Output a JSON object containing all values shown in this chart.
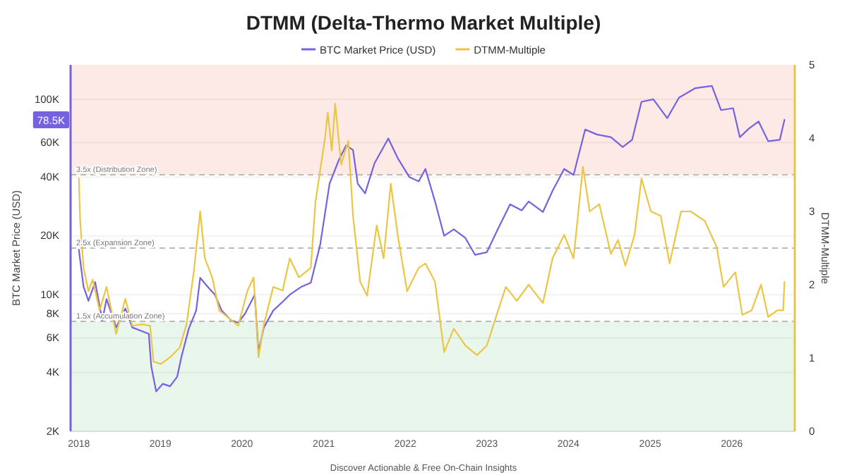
{
  "chart_data": {
    "type": "line",
    "title": "DTMM (Delta-Thermo Market Multiple)",
    "ylabel": "BTC Market Price (USD)",
    "y2label": "DTMM-Multiple",
    "annotations": [
      "Discover Actionable & Free On-Chain Insights",
      {
        "text": "78.5K",
        "y": 78500
      }
    ],
    "log": "y",
    "grid": "y",
    "legend": "top",
    "line_style": "solid",
    "marker": "none",
    "xlim": [
      "2017-11-25",
      "2026-10-10"
    ],
    "xticks": [
      "2018",
      "2019",
      "2020",
      "2021",
      "2022",
      "2023",
      "2024",
      "2025",
      "2026"
    ],
    "ylim": [
      2000,
      150000
    ],
    "yticks": [
      {
        "value": 2000,
        "label": "2K"
      },
      {
        "value": 4000,
        "label": "4K"
      },
      {
        "value": 6000,
        "label": "6K"
      },
      {
        "value": 8000,
        "label": "8K"
      },
      {
        "value": 10000,
        "label": "10K"
      },
      {
        "value": 20000,
        "label": "20K"
      },
      {
        "value": 40000,
        "label": "40K"
      },
      {
        "value": 60000,
        "label": "60K"
      },
      {
        "value": 100000,
        "label": "100K"
      }
    ],
    "y2lim": [
      0,
      5
    ],
    "y2ticks": [
      0,
      1,
      2,
      3,
      4,
      5
    ],
    "bands": [
      {
        "axis": "y2",
        "from": 3.5,
        "to": 5,
        "color": "#fde9e5"
      },
      {
        "axis": "y2",
        "from": 0,
        "to": 1.5,
        "color": "#e9f6ec"
      }
    ],
    "ref_lines": [
      {
        "axis": "y2",
        "value": 3.5,
        "label": "3.5x (Distribution Zone)",
        "line_style": "dashed",
        "color": "#bbbbbb"
      },
      {
        "axis": "y2",
        "value": 2.5,
        "label": "2.5x (Expansion Zone)",
        "line_style": "dashed",
        "color": "#bbbbbb"
      },
      {
        "axis": "y2",
        "value": 1.5,
        "label": "1.5x (Accumulation Zone)",
        "line_style": "dashed",
        "color": "#bbbbbb"
      }
    ],
    "series": [
      {
        "name": "BTC Market Price (USD)",
        "color": "#7462e0",
        "x": [
          "2018-01-01",
          "2018-01-22",
          "2018-02-13",
          "2018-03-15",
          "2018-04-16",
          "2018-05-05",
          "2018-06-17",
          "2018-07-28",
          "2018-08-28",
          "2018-10-11",
          "2018-11-10",
          "2018-11-21",
          "2018-12-13",
          "2019-01-12",
          "2019-02-13",
          "2019-03-17",
          "2019-04-05",
          "2019-05-08",
          "2019-06-10",
          "2019-06-28",
          "2019-07-31",
          "2019-09-02",
          "2019-10-02",
          "2019-11-13",
          "2019-12-15",
          "2020-01-15",
          "2020-02-27",
          "2020-03-15",
          "2020-04-08",
          "2020-05-20",
          "2020-07-01",
          "2020-08-02",
          "2020-09-24",
          "2020-11-04",
          "2020-12-16",
          "2021-01-27",
          "2021-03-10",
          "2021-04-11",
          "2021-05-12",
          "2021-06-02",
          "2021-07-05",
          "2021-08-16",
          "2021-10-17",
          "2021-11-28",
          "2022-01-19",
          "2022-03-02",
          "2022-04-01",
          "2022-05-14",
          "2022-06-24",
          "2022-08-06",
          "2022-09-27",
          "2022-11-09",
          "2023-01-01",
          "2023-02-22",
          "2023-04-15",
          "2023-06-06",
          "2023-07-07",
          "2023-09-09",
          "2023-10-22",
          "2023-12-13",
          "2024-01-24",
          "2024-03-16",
          "2024-05-08",
          "2024-07-09",
          "2024-08-31",
          "2024-10-12",
          "2024-11-23",
          "2025-01-15",
          "2025-03-18",
          "2025-05-10",
          "2025-07-22",
          "2025-10-04",
          "2025-11-14",
          "2026-01-07",
          "2026-02-06",
          "2026-03-20",
          "2026-05-01",
          "2026-06-13",
          "2026-08-04",
          "2026-08-25"
        ],
        "values": [
          17000,
          11000,
          9300,
          11600,
          7400,
          9500,
          6800,
          8500,
          6800,
          6500,
          6300,
          4300,
          3200,
          3500,
          3400,
          3800,
          4800,
          6700,
          8300,
          12200,
          11000,
          10000,
          8300,
          7400,
          7200,
          8000,
          10000,
          5100,
          6800,
          8300,
          9200,
          10000,
          11000,
          11500,
          18000,
          37000,
          49000,
          58000,
          55000,
          37000,
          33000,
          47000,
          63000,
          50000,
          40000,
          38000,
          44000,
          30000,
          20000,
          21600,
          19500,
          16000,
          16500,
          22000,
          29000,
          27000,
          30000,
          26500,
          34000,
          44000,
          41000,
          70000,
          66000,
          64000,
          57000,
          62000,
          97000,
          100000,
          80000,
          102000,
          114000,
          117000,
          88000,
          90000,
          64000,
          71000,
          77000,
          61000,
          62000,
          78500
        ]
      },
      {
        "name": "DTMM-Multiple",
        "axis": "y2",
        "color": "#ebc645",
        "x": [
          "2018-01-01",
          "2018-01-07",
          "2018-01-22",
          "2018-02-13",
          "2018-03-04",
          "2018-04-04",
          "2018-05-05",
          "2018-06-17",
          "2018-07-28",
          "2018-08-28",
          "2018-10-11",
          "2018-11-16",
          "2018-12-01",
          "2019-01-04",
          "2019-02-13",
          "2019-03-28",
          "2019-04-28",
          "2019-05-30",
          "2019-06-28",
          "2019-07-19",
          "2019-08-21",
          "2019-09-21",
          "2019-11-13",
          "2019-12-15",
          "2020-01-26",
          "2020-02-22",
          "2020-03-15",
          "2020-04-08",
          "2020-05-20",
          "2020-07-01",
          "2020-08-02",
          "2020-09-12",
          "2020-11-04",
          "2020-11-25",
          "2021-01-08",
          "2021-01-19",
          "2021-02-06",
          "2021-02-21",
          "2021-03-20",
          "2021-04-21",
          "2021-05-12",
          "2021-06-13",
          "2021-07-14",
          "2021-08-26",
          "2021-09-26",
          "2021-10-28",
          "2021-11-28",
          "2022-01-09",
          "2022-02-20",
          "2022-03-02",
          "2022-04-01",
          "2022-05-14",
          "2022-06-24",
          "2022-08-06",
          "2022-09-27",
          "2022-11-18",
          "2023-01-01",
          "2023-02-13",
          "2023-03-27",
          "2023-05-15",
          "2023-07-07",
          "2023-09-09",
          "2023-10-22",
          "2023-12-13",
          "2024-01-24",
          "2024-03-06",
          "2024-04-05",
          "2024-05-18",
          "2024-07-09",
          "2024-08-10",
          "2024-09-12",
          "2024-10-23",
          "2024-11-23",
          "2025-01-04",
          "2025-02-17",
          "2025-03-29",
          "2025-05-19",
          "2025-07-01",
          "2025-09-02",
          "2025-10-25",
          "2025-11-25",
          "2026-01-17",
          "2026-02-17",
          "2026-03-31",
          "2026-05-12",
          "2026-06-13",
          "2026-07-24",
          "2026-08-19",
          "2026-08-25"
        ],
        "values": [
          3.45,
          2.87,
          2.23,
          1.91,
          2.07,
          1.65,
          1.97,
          1.33,
          1.81,
          1.44,
          1.46,
          1.44,
          0.95,
          0.92,
          1.01,
          1.14,
          1.46,
          2.17,
          3.0,
          2.36,
          2.1,
          1.65,
          1.52,
          1.44,
          1.92,
          2.1,
          1.01,
          1.46,
          1.97,
          1.92,
          2.36,
          2.1,
          2.23,
          3.13,
          4.03,
          4.35,
          3.83,
          4.47,
          3.64,
          3.96,
          2.94,
          2.04,
          1.85,
          2.81,
          2.36,
          3.38,
          2.68,
          1.91,
          2.17,
          2.23,
          2.29,
          2.04,
          1.08,
          1.4,
          1.17,
          1.04,
          1.17,
          1.58,
          1.97,
          1.78,
          2.0,
          1.75,
          2.36,
          2.68,
          2.36,
          3.61,
          3.0,
          3.1,
          2.42,
          2.61,
          2.26,
          2.68,
          3.45,
          3.0,
          2.94,
          2.29,
          3.0,
          3.0,
          2.87,
          2.52,
          1.97,
          2.17,
          1.59,
          1.65,
          2.0,
          1.56,
          1.65,
          1.65,
          2.04
        ]
      }
    ]
  }
}
